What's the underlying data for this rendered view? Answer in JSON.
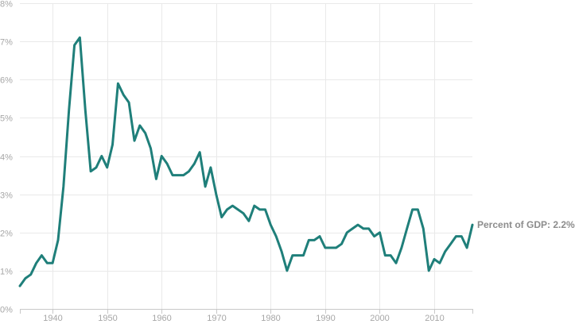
{
  "chart_data": {
    "type": "line",
    "title": "",
    "xlabel": "",
    "ylabel": "",
    "ylim": [
      0,
      8
    ],
    "xlim": [
      1934,
      2017
    ],
    "grid": true,
    "y_ticks": [
      "0%",
      "1%",
      "2%",
      "3%",
      "4%",
      "5%",
      "6%",
      "7%",
      "8%"
    ],
    "x_ticks": [
      "1940",
      "1950",
      "1960",
      "1970",
      "1980",
      "1990",
      "2000",
      "2010"
    ],
    "annotation": "Percent of GDP: 2.2%",
    "line_color": "#1f7f7a",
    "series": [
      {
        "name": "Percent of GDP",
        "x": [
          1934,
          1935,
          1936,
          1937,
          1938,
          1939,
          1940,
          1941,
          1942,
          1943,
          1944,
          1945,
          1946,
          1947,
          1948,
          1949,
          1950,
          1951,
          1952,
          1953,
          1954,
          1955,
          1956,
          1957,
          1958,
          1959,
          1960,
          1961,
          1962,
          1963,
          1964,
          1965,
          1966,
          1967,
          1968,
          1969,
          1970,
          1971,
          1972,
          1973,
          1974,
          1975,
          1976,
          1977,
          1978,
          1979,
          1980,
          1981,
          1982,
          1983,
          1984,
          1985,
          1986,
          1987,
          1988,
          1989,
          1990,
          1991,
          1992,
          1993,
          1994,
          1995,
          1996,
          1997,
          1998,
          1999,
          2000,
          2001,
          2002,
          2003,
          2004,
          2005,
          2006,
          2007,
          2008,
          2009,
          2010,
          2011,
          2012,
          2013,
          2014,
          2015,
          2016,
          2017
        ],
        "values": [
          0.6,
          0.8,
          0.9,
          1.2,
          1.4,
          1.2,
          1.2,
          1.8,
          3.2,
          5.2,
          6.9,
          7.1,
          5.2,
          3.6,
          3.7,
          4.0,
          3.7,
          4.3,
          5.9,
          5.6,
          5.4,
          4.4,
          4.8,
          4.6,
          4.2,
          3.4,
          4.0,
          3.8,
          3.5,
          3.5,
          3.5,
          3.6,
          3.8,
          4.1,
          3.2,
          3.7,
          3.0,
          2.4,
          2.6,
          2.7,
          2.6,
          2.5,
          2.3,
          2.7,
          2.6,
          2.6,
          2.2,
          1.9,
          1.5,
          1.0,
          1.4,
          1.4,
          1.4,
          1.8,
          1.8,
          1.9,
          1.6,
          1.6,
          1.6,
          1.7,
          2.0,
          2.1,
          2.2,
          2.1,
          2.1,
          1.9,
          2.0,
          1.4,
          1.4,
          1.2,
          1.6,
          2.1,
          2.6,
          2.6,
          2.1,
          1.0,
          1.3,
          1.2,
          1.5,
          1.7,
          1.9,
          1.9,
          1.6,
          2.2
        ]
      }
    ]
  }
}
